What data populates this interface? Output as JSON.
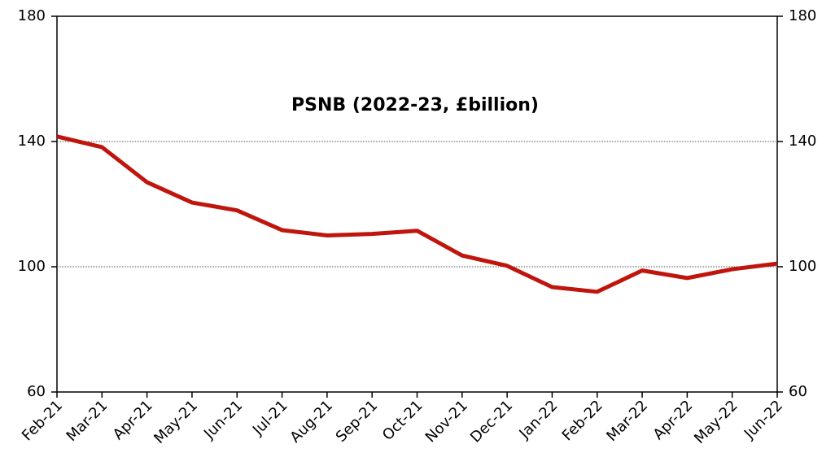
{
  "chart_data": {
    "type": "line",
    "title": "PSNB (2022-23, £billion)",
    "categories": [
      "Feb-21",
      "Mar-21",
      "Apr-21",
      "May-21",
      "Jun-21",
      "Jul-21",
      "Aug-21",
      "Sep-21",
      "Oct-21",
      "Nov-21",
      "Dec-21",
      "Jan-22",
      "Feb-22",
      "Mar-22",
      "Apr-22",
      "May-22",
      "Jun-22"
    ],
    "series": [
      {
        "name": "PSNB",
        "color": "#c0150d",
        "values": [
          141.6,
          138.2,
          127,
          120.5,
          118,
          111.7,
          110,
          110.5,
          111.5,
          103.6,
          100.3,
          93.5,
          92,
          98.8,
          96.4,
          99.2,
          101
        ]
      }
    ],
    "ylim": [
      60,
      180
    ],
    "yticks": [
      60,
      100,
      140,
      180
    ],
    "y2lim": [
      60,
      180
    ],
    "y2ticks": [
      60,
      100,
      140,
      180
    ],
    "grid": true
  }
}
